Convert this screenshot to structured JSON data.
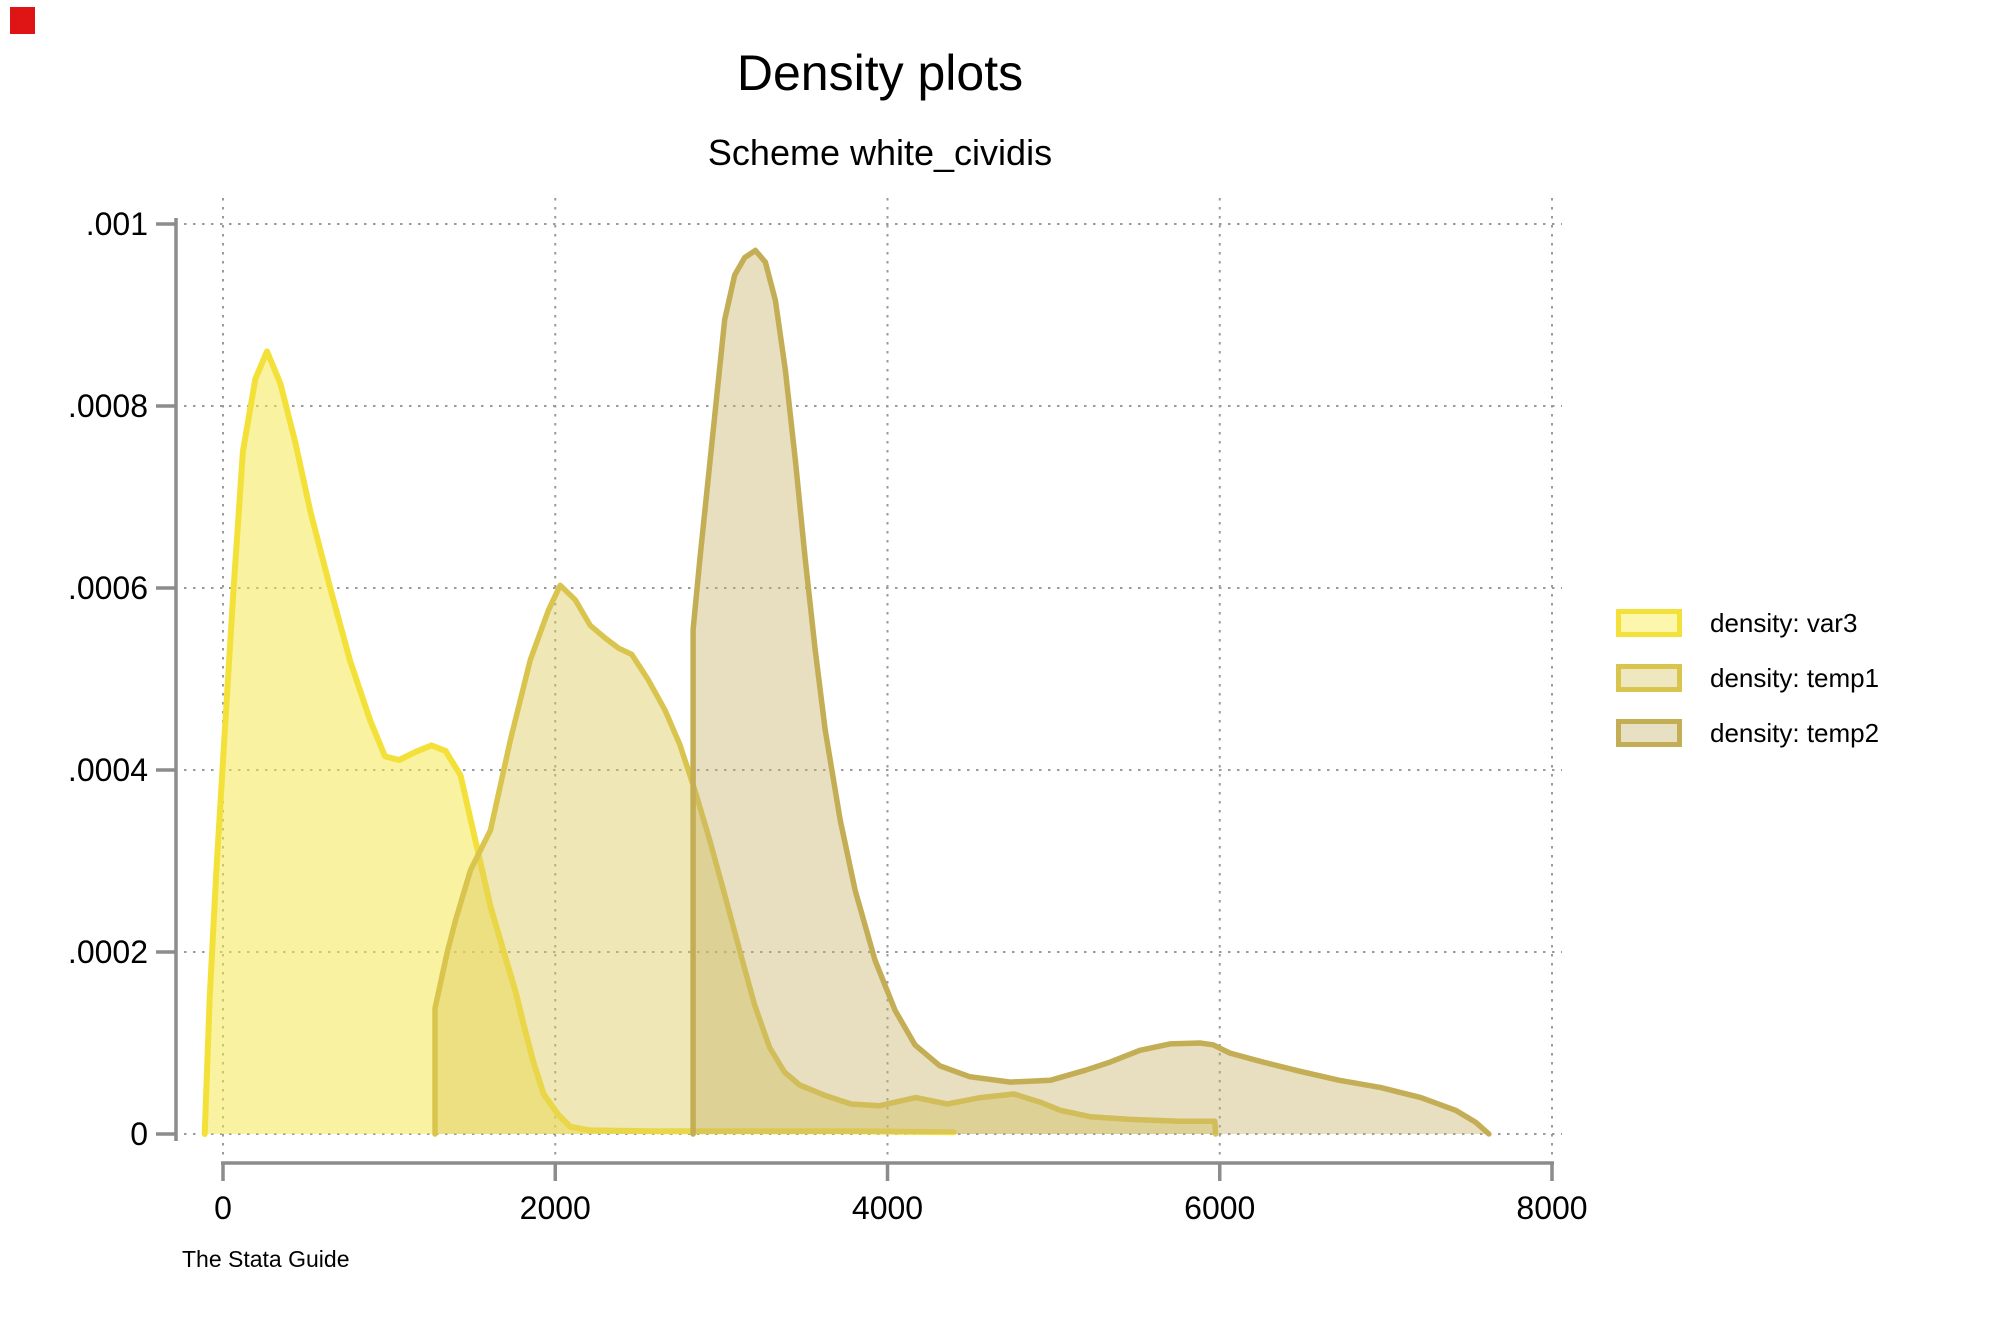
{
  "marker": {
    "color": "#df1515"
  },
  "header": {
    "title": "Density plots",
    "subtitle": "Scheme white_cividis"
  },
  "caption": "The Stata Guide",
  "legend": [
    {
      "label": "density: var3",
      "fill": "#fcf7ad",
      "border": "#f3e13a"
    },
    {
      "label": "density: temp1",
      "fill": "#efe7c0",
      "border": "#d9c44e"
    },
    {
      "label": "density: temp2",
      "fill": "#e7e0c3",
      "border": "#c4ae55"
    }
  ],
  "chart_data": {
    "type": "area",
    "title": "Density plots",
    "subtitle": "Scheme white_cividis",
    "xlabel": "",
    "ylabel": "",
    "xlim": [
      0,
      8000
    ],
    "ylim": [
      0,
      0.001
    ],
    "x_ticks": [
      0,
      2000,
      4000,
      6000,
      8000
    ],
    "x_tick_labels": [
      "0",
      "2000",
      "4000",
      "6000",
      "8000"
    ],
    "y_ticks": [
      0,
      0.0002,
      0.0004,
      0.0006,
      0.0008,
      0.001
    ],
    "y_tick_labels": [
      "0",
      ".0002",
      ".0004",
      ".0006",
      ".0008",
      ".001"
    ],
    "grid": "dotted",
    "grid_color": "#9a9a9a",
    "axis_color": "#8c8c8c",
    "legend_position": "right-outside",
    "series": [
      {
        "name": "density: var3",
        "stroke": "#f3e13a",
        "stroke_width": 6,
        "fill": "#f4e852",
        "fill_opacity": 0.55,
        "points": [
          [
            -110,
            0
          ],
          [
            -80,
            0.00015
          ],
          [
            -40,
            0.00029
          ],
          [
            0,
            0.00041
          ],
          [
            60,
            0.00059
          ],
          [
            120,
            0.00075
          ],
          [
            195,
            0.00083
          ],
          [
            265,
            0.00086
          ],
          [
            345,
            0.000825
          ],
          [
            435,
            0.00076
          ],
          [
            525,
            0.000685
          ],
          [
            645,
            0.0006
          ],
          [
            765,
            0.00052
          ],
          [
            885,
            0.000455
          ],
          [
            975,
            0.000415
          ],
          [
            1060,
            0.000411
          ],
          [
            1160,
            0.00042
          ],
          [
            1255,
            0.000427
          ],
          [
            1340,
            0.000421
          ],
          [
            1430,
            0.000394
          ],
          [
            1520,
            0.000322
          ],
          [
            1610,
            0.00025
          ],
          [
            1690,
            0.0002
          ],
          [
            1760,
            0.000157
          ],
          [
            1820,
            0.000113
          ],
          [
            1870,
            7.8e-05
          ],
          [
            1930,
            4.4e-05
          ],
          [
            2015,
            2.2e-05
          ],
          [
            2090,
            8e-06
          ],
          [
            2210,
            4e-06
          ],
          [
            2600,
            3e-06
          ],
          [
            3200,
            3e-06
          ],
          [
            3800,
            3e-06
          ],
          [
            4400,
            2e-06
          ]
        ]
      },
      {
        "name": "density: temp1",
        "stroke": "#d9c44e",
        "stroke_width": 5.5,
        "fill": "#deca5d",
        "fill_opacity": 0.45,
        "points": [
          [
            1276,
            0
          ],
          [
            1276,
            0.000138
          ],
          [
            1350,
            0.0002
          ],
          [
            1400,
            0.000235
          ],
          [
            1490,
            0.00029
          ],
          [
            1610,
            0.000334
          ],
          [
            1730,
            0.000433
          ],
          [
            1850,
            0.000521
          ],
          [
            1960,
            0.000576
          ],
          [
            2030,
            0.000603
          ],
          [
            2120,
            0.000587
          ],
          [
            2210,
            0.000559
          ],
          [
            2300,
            0.000545
          ],
          [
            2380,
            0.000534
          ],
          [
            2460,
            0.000527
          ],
          [
            2560,
            0.000499
          ],
          [
            2660,
            0.000466
          ],
          [
            2750,
            0.000428
          ],
          [
            2840,
            0.000378
          ],
          [
            2930,
            0.000323
          ],
          [
            3020,
            0.000263
          ],
          [
            3110,
            0.000202
          ],
          [
            3200,
            0.000142
          ],
          [
            3290,
            9.5e-05
          ],
          [
            3380,
            6.8e-05
          ],
          [
            3470,
            5.4e-05
          ],
          [
            3630,
            4.2e-05
          ],
          [
            3780,
            3.3e-05
          ],
          [
            3950,
            3.1e-05
          ],
          [
            4170,
            4e-05
          ],
          [
            4360,
            3.3e-05
          ],
          [
            4560,
            4e-05
          ],
          [
            4760,
            4.4e-05
          ],
          [
            4920,
            3.5e-05
          ],
          [
            5040,
            2.6e-05
          ],
          [
            5220,
            1.9e-05
          ],
          [
            5460,
            1.6e-05
          ],
          [
            5760,
            1.4e-05
          ],
          [
            5970,
            1.4e-05
          ],
          [
            5975,
            0
          ]
        ]
      },
      {
        "name": "density: temp2",
        "stroke": "#c4ae55",
        "stroke_width": 5.5,
        "fill": "#c6b369",
        "fill_opacity": 0.42,
        "points": [
          [
            2830,
            0
          ],
          [
            2830,
            0.000554
          ],
          [
            2870,
            0.000631
          ],
          [
            2920,
            0.000719
          ],
          [
            2970,
            0.000807
          ],
          [
            3020,
            0.000895
          ],
          [
            3080,
            0.000944
          ],
          [
            3140,
            0.000963
          ],
          [
            3205,
            0.000971
          ],
          [
            3265,
            0.000958
          ],
          [
            3325,
            0.000916
          ],
          [
            3385,
            0.00084
          ],
          [
            3445,
            0.000741
          ],
          [
            3505,
            0.000631
          ],
          [
            3565,
            0.000532
          ],
          [
            3625,
            0.000444
          ],
          [
            3715,
            0.000345
          ],
          [
            3805,
            0.000268
          ],
          [
            3925,
            0.000191
          ],
          [
            4045,
            0.000136
          ],
          [
            4165,
            9.8e-05
          ],
          [
            4315,
            7.5e-05
          ],
          [
            4495,
            6.3e-05
          ],
          [
            4740,
            5.7e-05
          ],
          [
            4980,
            5.9e-05
          ],
          [
            5190,
            7e-05
          ],
          [
            5340,
            7.9e-05
          ],
          [
            5520,
            9.2e-05
          ],
          [
            5700,
            9.9e-05
          ],
          [
            5880,
            0.0001
          ],
          [
            5960,
            9.8e-05
          ],
          [
            6060,
            8.9e-05
          ],
          [
            6240,
            8e-05
          ],
          [
            6480,
            6.9e-05
          ],
          [
            6720,
            5.9e-05
          ],
          [
            6970,
            5.1e-05
          ],
          [
            7210,
            4e-05
          ],
          [
            7420,
            2.6e-05
          ],
          [
            7540,
            1.3e-05
          ],
          [
            7620,
            0
          ]
        ]
      }
    ]
  }
}
